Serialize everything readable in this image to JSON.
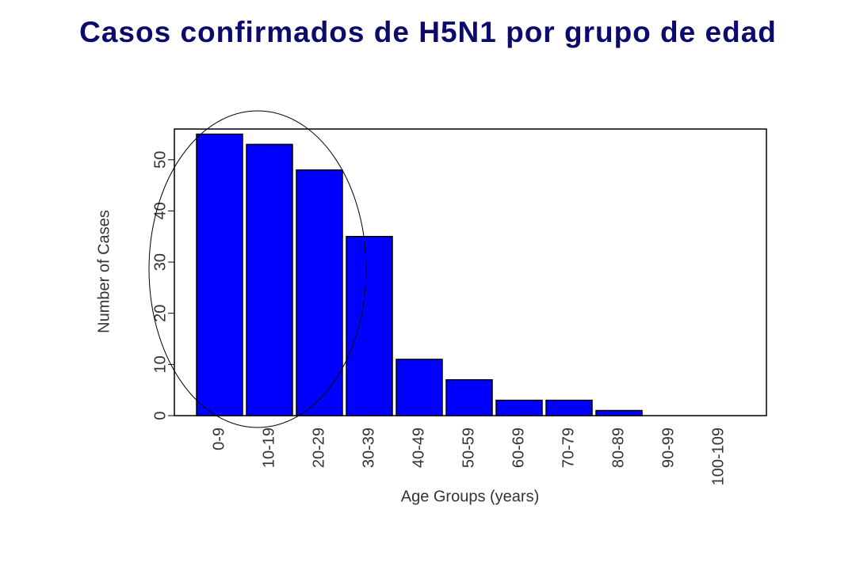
{
  "chart_data": {
    "type": "bar",
    "title": "Casos confirmados de H5N1 por grupo de edad",
    "x_label": "Age Groups (years)",
    "y_label": "Number of Cases",
    "categories": [
      "0-9",
      "10-19",
      "20-29",
      "30-39",
      "40-49",
      "50-59",
      "60-69",
      "70-79",
      "80-89",
      "90-99",
      "100-109"
    ],
    "values": [
      55,
      53,
      48,
      35,
      11,
      7,
      3,
      3,
      1,
      0,
      0
    ],
    "color": "#0000ff",
    "ylim": [
      0,
      56
    ],
    "yticks": [
      0,
      10,
      20,
      30,
      40,
      50
    ],
    "grid": false
  }
}
